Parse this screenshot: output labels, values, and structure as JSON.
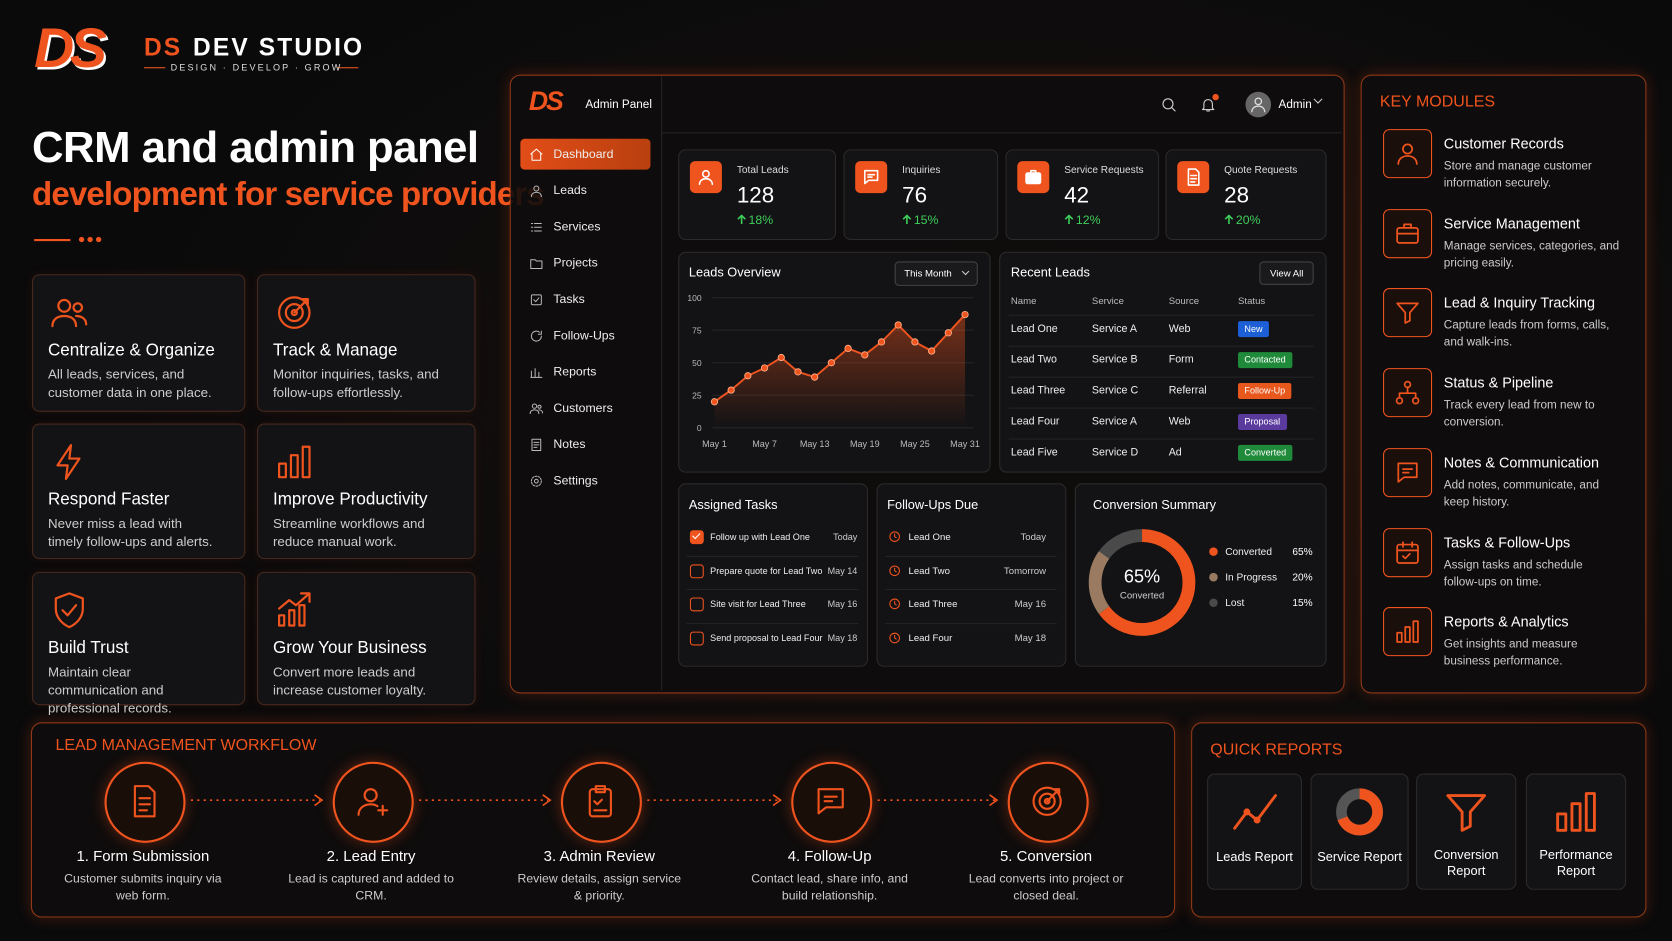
{
  "brand": {
    "logo": "DS",
    "name_accent": "DS",
    "name": "DEV STUDIO",
    "tagline": "DESIGN · DEVELOP · GROW"
  },
  "hero": {
    "title": "CRM and admin panel",
    "subtitle": "development for service providers"
  },
  "features": [
    {
      "title": "Centralize & Organize",
      "text": "All leads, services, and customer data in one place."
    },
    {
      "title": "Track & Manage",
      "text": "Monitor inquiries, tasks, and follow-ups effortlessly."
    },
    {
      "title": "Respond Faster",
      "text": "Never miss a lead with timely follow-ups and alerts."
    },
    {
      "title": "Improve Productivity",
      "text": "Streamline workflows and reduce manual work."
    },
    {
      "title": "Build Trust",
      "text": "Maintain clear communication and professional records."
    },
    {
      "title": "Grow Your Business",
      "text": "Convert more leads and increase customer loyalty."
    }
  ],
  "admin": {
    "logo": "DS",
    "panel_label": "Admin Panel",
    "user": "Admin",
    "nav": [
      {
        "label": "Dashboard",
        "active": true
      },
      {
        "label": "Leads"
      },
      {
        "label": "Services"
      },
      {
        "label": "Projects"
      },
      {
        "label": "Tasks"
      },
      {
        "label": "Follow-Ups"
      },
      {
        "label": "Reports"
      },
      {
        "label": "Customers"
      },
      {
        "label": "Notes"
      },
      {
        "label": "Settings"
      }
    ],
    "stats": [
      {
        "label": "Total Leads",
        "value": 128,
        "change": "18%"
      },
      {
        "label": "Inquiries",
        "value": 76,
        "change": "15%"
      },
      {
        "label": "Service Requests",
        "value": 42,
        "change": "12%"
      },
      {
        "label": "Quote Requests",
        "value": 28,
        "change": "20%"
      }
    ],
    "leads_overview": {
      "title": "Leads Overview",
      "filter": "This Month",
      "chart": {
        "type": "line",
        "categories": [
          "May 1",
          null,
          null,
          "May 7",
          null,
          null,
          "May 13",
          null,
          null,
          "May 19",
          null,
          null,
          "May 25",
          null,
          null,
          "May 31"
        ],
        "values": [
          20,
          29,
          40,
          46,
          54,
          43,
          39,
          50,
          61,
          56,
          66,
          79,
          66,
          59,
          73,
          87
        ],
        "color": "#f0541e",
        "ylim": [
          0,
          100
        ],
        "yticks": [
          0,
          25,
          50,
          75,
          100
        ],
        "grid": true
      }
    },
    "recent_leads": {
      "title": "Recent Leads",
      "action": "View All",
      "columns": [
        "Name",
        "Service",
        "Source",
        "Status"
      ],
      "rows": [
        {
          "cells": [
            "Lead One",
            "Service A",
            "Web",
            "New"
          ],
          "color": "#1d5fd6"
        },
        {
          "cells": [
            "Lead Two",
            "Service B",
            "Form",
            "Contacted"
          ],
          "color": "#1f8a3a"
        },
        {
          "cells": [
            "Lead Three",
            "Service C",
            "Referral",
            "Follow-Up"
          ],
          "color": "#e8571c"
        },
        {
          "cells": [
            "Lead Four",
            "Service A",
            "Web",
            "Proposal"
          ],
          "color": "#5b3a9e"
        },
        {
          "cells": [
            "Lead Five",
            "Service D",
            "Ad",
            "Converted"
          ],
          "color": "#1f8a3a"
        }
      ]
    },
    "assigned_tasks": {
      "title": "Assigned Tasks",
      "items": [
        {
          "text": "Follow up with Lead One",
          "due": "Today",
          "done": true
        },
        {
          "text": "Prepare quote for Lead Two",
          "due": "May 14"
        },
        {
          "text": "Site visit for Lead Three",
          "due": "May 16"
        },
        {
          "text": "Send proposal to Lead Four",
          "due": "May 18"
        }
      ]
    },
    "follow_ups": {
      "title": "Follow-Ups Due",
      "items": [
        {
          "name": "Lead One",
          "due": "Today"
        },
        {
          "name": "Lead Two",
          "due": "Tomorrow"
        },
        {
          "name": "Lead Three",
          "due": "May 16"
        },
        {
          "name": "Lead Four",
          "due": "May 18"
        }
      ]
    },
    "conversion": {
      "title": "Conversion Summary",
      "center_caption": "Converted",
      "chart": {
        "type": "donut",
        "categories": [
          "Converted",
          "In Progress",
          "Lost"
        ],
        "values": [
          65,
          20,
          15
        ],
        "value_labels": [
          "65%",
          "20%",
          "15%"
        ],
        "colors": [
          "#f0541e",
          "#9a7b62",
          "#4a4a4a"
        ]
      }
    }
  },
  "key_modules": {
    "title": "KEY MODULES",
    "items": [
      {
        "title": "Customer Records",
        "text": "Store and manage customer information securely."
      },
      {
        "title": "Service Management",
        "text": "Manage services, categories, and pricing easily."
      },
      {
        "title": "Lead & Inquiry Tracking",
        "text": "Capture leads from forms, calls, and walk-ins."
      },
      {
        "title": "Status & Pipeline",
        "text": "Track every lead from new to conversion."
      },
      {
        "title": "Notes & Communication",
        "text": "Add notes, communicate, and keep history."
      },
      {
        "title": "Tasks & Follow-Ups",
        "text": "Assign tasks and schedule follow-ups on time."
      },
      {
        "title": "Reports & Analytics",
        "text": "Get insights and measure business performance."
      }
    ]
  },
  "workflow": {
    "title": "LEAD MANAGEMENT WORKFLOW",
    "steps": [
      {
        "title": "1. Form Submission",
        "text": "Customer submits inquiry via web form."
      },
      {
        "title": "2. Lead Entry",
        "text": "Lead is captured and added to CRM."
      },
      {
        "title": "3. Admin Review",
        "text": "Review details, assign service & priority."
      },
      {
        "title": "4. Follow-Up",
        "text": "Contact lead, share info, and build relationship."
      },
      {
        "title": "5. Conversion",
        "text": "Lead converts into project or closed deal."
      }
    ]
  },
  "quick_reports": {
    "title": "QUICK REPORTS",
    "items": [
      "Leads Report",
      "Service Report",
      "Conversion Report",
      "Performance Report"
    ]
  }
}
